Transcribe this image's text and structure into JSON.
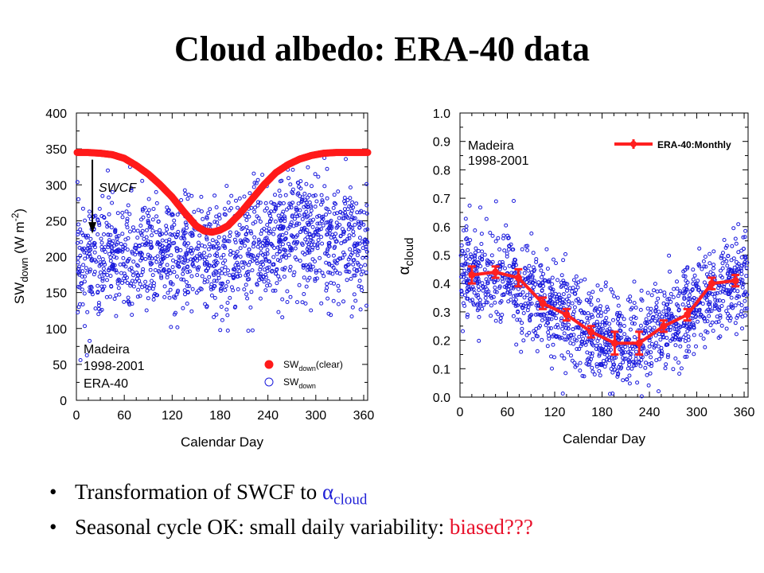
{
  "slide": {
    "title": "Cloud albedo: ERA-40 data",
    "bullet1_text": "Transformation of SWCF to ",
    "bullet1_symbol": "α",
    "bullet1_subscript": "cloud",
    "bullet2_text": "Seasonal cycle OK: small daily variability: ",
    "bullet2_highlight": "biased???",
    "bullet_glyph": "•",
    "colors": {
      "clear_sky": "#ff1a1a",
      "daily": "#1a1adc",
      "monthly": "#ff2020",
      "highlight": "#e8102a",
      "alpha_symbol": "#1f1fd6"
    }
  },
  "chart_data": [
    {
      "type": "scatter",
      "xlabel": "Calendar Day",
      "ylabel": "SW",
      "ylabel_sub": "down",
      "ylabel_unit": "(W m",
      "ylabel_sup": "-2",
      "ylabel_close": ")",
      "xlim": [
        0,
        365
      ],
      "ylim": [
        0,
        400
      ],
      "xticks": [
        0,
        60,
        120,
        180,
        240,
        300,
        360
      ],
      "yticks": [
        0,
        50,
        100,
        150,
        200,
        250,
        300,
        350,
        400
      ],
      "grid": false,
      "annotations": {
        "arrow_label": "SWCF",
        "location_line1": "Madeira",
        "location_line2": "1998-2001",
        "location_line3": "ERA-40"
      },
      "legend": {
        "placement": "bottom-right",
        "entries": [
          {
            "prefix": "SW",
            "sub": "down",
            "suffix": "(clear)",
            "marker": "filled"
          },
          {
            "prefix": "SW",
            "sub": "down",
            "suffix": "",
            "marker": "open"
          }
        ]
      },
      "series": [
        {
          "name": "SWdown(clear)",
          "marker": "filled",
          "x": [
            1,
            15,
            30,
            45,
            60,
            75,
            90,
            105,
            120,
            135,
            150,
            160,
            170,
            180,
            190,
            205,
            220,
            235,
            250,
            265,
            280,
            295,
            310,
            325,
            340,
            355,
            365
          ],
          "y": [
            345,
            345,
            344,
            342,
            337,
            327,
            315,
            300,
            283,
            262,
            243,
            236,
            234,
            237,
            243,
            260,
            280,
            300,
            317,
            328,
            336,
            341,
            344,
            345,
            345,
            345,
            345
          ]
        },
        {
          "name": "SWdown",
          "marker": "open",
          "x_range": [
            1,
            365
          ],
          "mean_curve_x": [
            1,
            90,
            180,
            270,
            365
          ],
          "mean_curve_y": [
            195,
            200,
            195,
            235,
            215
          ],
          "spread": 40,
          "approx_points": 1460
        }
      ]
    },
    {
      "type": "line",
      "xlabel": "Calendar Day",
      "ylabel": "α",
      "ylabel_sub": "cloud",
      "xlim": [
        0,
        365
      ],
      "ylim": [
        0.0,
        1.0
      ],
      "xticks": [
        0,
        60,
        120,
        180,
        240,
        300,
        360
      ],
      "yticks": [
        "0.0",
        "0.1",
        "0.2",
        "0.3",
        "0.4",
        "0.5",
        "0.6",
        "0.7",
        "0.8",
        "0.9",
        "1.0"
      ],
      "grid": false,
      "annotations": {
        "location_line1": "Madeira",
        "location_line2": "1998-2001"
      },
      "legend": {
        "placement": "top-right",
        "entries": [
          {
            "label": "ERA-40:Monthly"
          }
        ]
      },
      "series": [
        {
          "name": "ERA-40:Monthly",
          "x": [
            15,
            45,
            74,
            105,
            135,
            166,
            196,
            227,
            258,
            288,
            319,
            349
          ],
          "y": [
            0.43,
            0.44,
            0.42,
            0.33,
            0.29,
            0.23,
            0.19,
            0.19,
            0.25,
            0.29,
            0.4,
            0.41
          ],
          "err": [
            0.03,
            0.02,
            0.03,
            0.02,
            0.02,
            0.02,
            0.04,
            0.04,
            0.02,
            0.02,
            0.02,
            0.02
          ]
        },
        {
          "name": "daily",
          "marker": "open",
          "x_range": [
            1,
            365
          ],
          "mean_curve_x": [
            1,
            60,
            120,
            180,
            220,
            270,
            330,
            365
          ],
          "mean_curve_y": [
            0.44,
            0.42,
            0.3,
            0.21,
            0.18,
            0.27,
            0.38,
            0.41
          ],
          "spread": 0.08,
          "approx_points": 1460
        }
      ]
    }
  ]
}
